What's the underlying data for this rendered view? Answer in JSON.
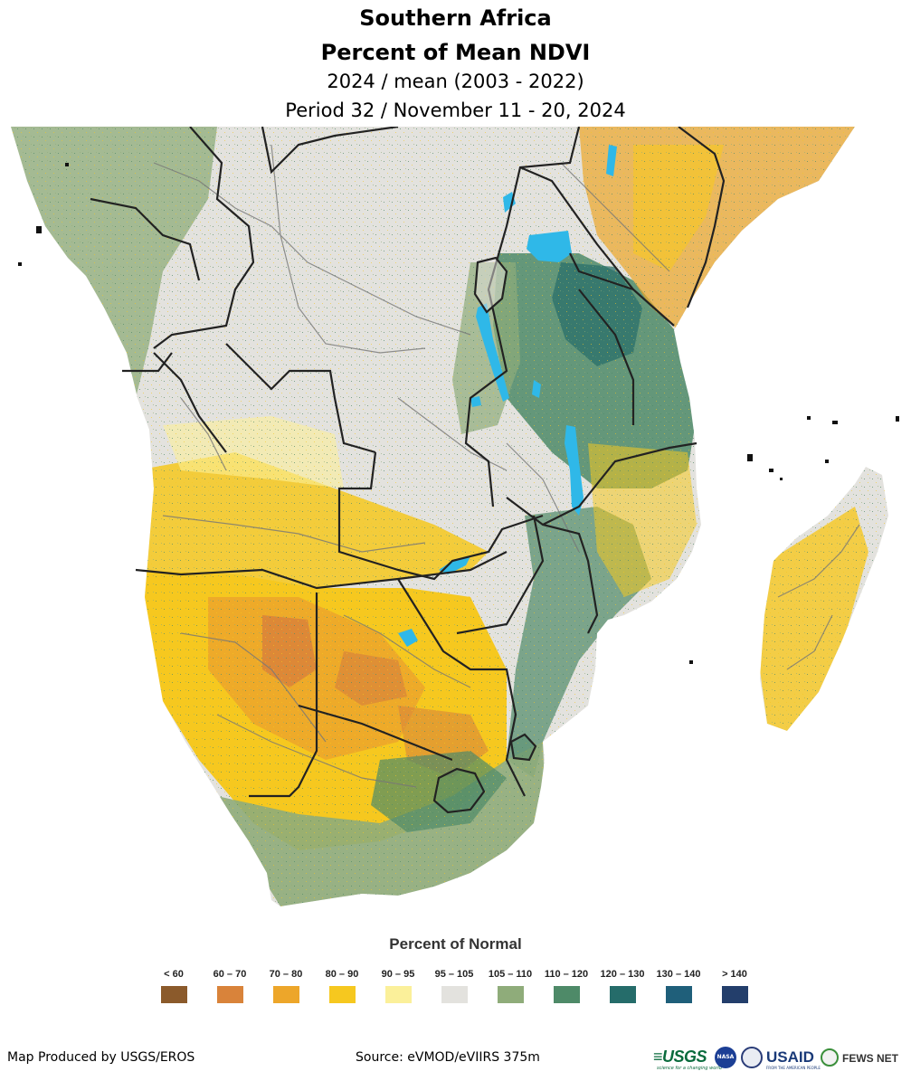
{
  "header": {
    "title_line1": "Southern Africa",
    "title_line2": "Percent of Mean NDVI",
    "subtitle_line1": "2024 / mean (2003 - 2022)",
    "subtitle_line2": "Period 32 / November 11 - 20, 2024"
  },
  "map": {
    "colors": {
      "ocean": "#ffffff",
      "land_default": "#e3e2de",
      "water": "#2fb8e8",
      "country_border": "#222222",
      "admin_border": "#777777"
    }
  },
  "legend": {
    "title": "Percent of Normal",
    "classes": [
      {
        "label": "< 60",
        "color": "#8b5a2b"
      },
      {
        "label": "60 – 70",
        "color": "#d9833a"
      },
      {
        "label": "70 – 80",
        "color": "#eda62a"
      },
      {
        "label": "80 – 90",
        "color": "#f6c81f"
      },
      {
        "label": "90 – 95",
        "color": "#fbf09a"
      },
      {
        "label": "95 – 105",
        "color": "#e3e2de"
      },
      {
        "label": "105 – 110",
        "color": "#8fac7a"
      },
      {
        "label": "110 – 120",
        "color": "#4e8a68"
      },
      {
        "label": "120 – 130",
        "color": "#256c6a"
      },
      {
        "label": "130 – 140",
        "color": "#1f5f7a"
      },
      {
        "label": ">  140",
        "color": "#233e6b"
      }
    ]
  },
  "footer": {
    "credit": "Map Produced by USGS/EROS",
    "source": "Source: eVMOD/eVIIRS 375m",
    "logos": {
      "usgs": "≡USGS",
      "usgs_tagline": "science for a changing world",
      "nasa": "NASA",
      "usaid": "USAID",
      "usaid_tagline": "FROM THE AMERICAN PEOPLE",
      "fewsnet": "FEWS NET"
    }
  }
}
